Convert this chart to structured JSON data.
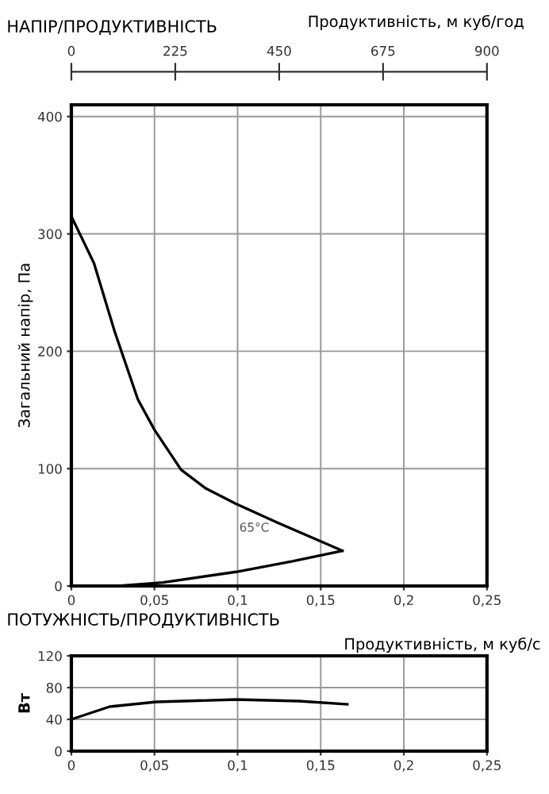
{
  "chart_data": [
    {
      "type": "line",
      "title": "НАПІР/ПРОДУКТИВНІСТЬ",
      "ylabel": "Загальний напір, Па",
      "x2label": "Продуктивність, м куб/год",
      "series": [
        {
          "color": "#000000",
          "x": [
            0,
            0.0136,
            0.026,
            0.04,
            0.05,
            0.066,
            0.081,
            0.099,
            0.124,
            0.163
          ],
          "values": [
            315,
            275,
            217,
            159,
            133,
            99,
            83,
            70,
            54,
            30
          ]
        },
        {
          "color": "#000000",
          "x": [
            0.028,
            0.055,
            0.099,
            0.133,
            0.163
          ],
          "values": [
            0,
            3,
            12,
            21,
            30
          ]
        }
      ],
      "annotations": [
        "65°C"
      ],
      "xlim": [
        0,
        0.25
      ],
      "xticks": [
        0,
        {
          "value": 0.05,
          "label": "0,05"
        },
        {
          "value": 0.1,
          "label": "0,1"
        },
        {
          "value": 0.15,
          "label": "0,15"
        },
        {
          "value": 0.2,
          "label": "0,2"
        },
        {
          "value": 0.25,
          "label": "0,25"
        }
      ],
      "ylim": [
        0,
        410
      ],
      "yticks": [
        0,
        100,
        200,
        300,
        400
      ],
      "x2lim": [
        0,
        900
      ],
      "x2ticks": [
        0,
        225,
        450,
        675,
        900
      ],
      "grid": true,
      "marker": "none",
      "line_style": "solid"
    },
    {
      "type": "line",
      "title": "ПОТУЖНІСТЬ/ПРОДУКТИВНІСТЬ",
      "xlabel": "Продуктивність, м куб/с",
      "ylabel": "Вт",
      "series": [
        {
          "color": "#000000",
          "x": [
            0,
            0.023,
            0.051,
            0.099,
            0.137,
            0.166
          ],
          "values": [
            40,
            56,
            62,
            65,
            63,
            59
          ]
        }
      ],
      "xlim": [
        0,
        0.25
      ],
      "xticks": [
        0,
        {
          "value": 0.05,
          "label": "0,05"
        },
        {
          "value": 0.1,
          "label": "0,1"
        },
        {
          "value": 0.15,
          "label": "0,15"
        },
        {
          "value": 0.2,
          "label": "0,2"
        },
        {
          "value": 0.25,
          "label": "0,25"
        }
      ],
      "ylim": [
        0,
        120
      ],
      "yticks": [
        0,
        40,
        80,
        120
      ],
      "grid": true,
      "marker": "none",
      "line_style": "solid"
    }
  ]
}
